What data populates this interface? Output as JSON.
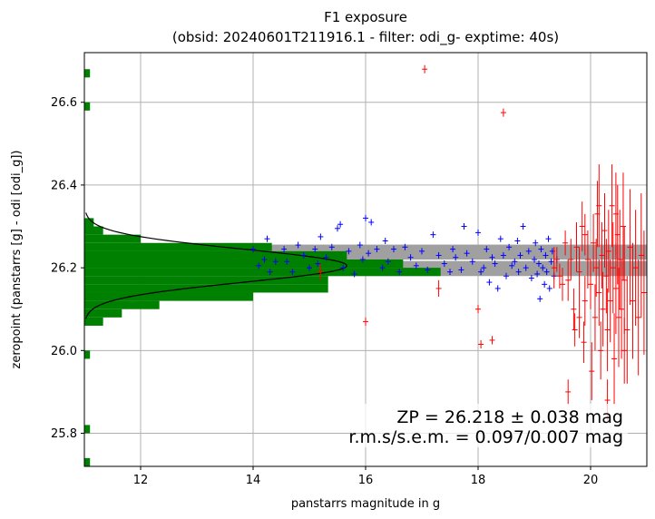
{
  "chart_data": {
    "type": "scatter",
    "title": "F1 exposure",
    "subtitle": "(obsid: 20240601T211916.1 - filter: odi_g- exptime: 40s)",
    "xlabel": "panstarrs magnitude in g",
    "ylabel": "zeropoint (panstarrs [g] - odi [odi_g])",
    "xlim": [
      11.0,
      21.0
    ],
    "ylim": [
      25.72,
      26.72
    ],
    "xticks": [
      "12",
      "14",
      "16",
      "18",
      "20"
    ],
    "yticks": [
      "25.8",
      "26.0",
      "26.2",
      "26.4",
      "26.6"
    ],
    "grid": true,
    "annotation": {
      "zp_line": "ZP = 26.218 ± 0.038 mag",
      "rms_line": "r.m.s/s.e.m. = 0.097/0.007 mag"
    },
    "zeropoint": 26.218,
    "zeropoint_error": 0.038,
    "colors": {
      "used": "#0000ff",
      "rejected": "#ff0000",
      "histogram": "#008000",
      "band": "#a0a0a0",
      "zp_line": "#ffffff",
      "fit_curve": "#000000",
      "grid": "#b0b0b0"
    },
    "histogram": {
      "bin_width": 0.02,
      "bins": [
        {
          "y": 25.72,
          "count": 0.3
        },
        {
          "y": 25.8,
          "count": 0.3
        },
        {
          "y": 25.98,
          "count": 0.3
        },
        {
          "y": 26.06,
          "count": 1
        },
        {
          "y": 26.08,
          "count": 2
        },
        {
          "y": 26.1,
          "count": 4
        },
        {
          "y": 26.12,
          "count": 9
        },
        {
          "y": 26.14,
          "count": 13
        },
        {
          "y": 26.16,
          "count": 13
        },
        {
          "y": 26.18,
          "count": 19
        },
        {
          "y": 26.2,
          "count": 17
        },
        {
          "y": 26.22,
          "count": 14
        },
        {
          "y": 26.24,
          "count": 10
        },
        {
          "y": 26.26,
          "count": 3
        },
        {
          "y": 26.28,
          "count": 1
        },
        {
          "y": 26.3,
          "count": 0.5
        },
        {
          "y": 26.58,
          "count": 0.3
        },
        {
          "y": 26.66,
          "count": 0.3
        }
      ],
      "count_max": 30,
      "gaussian": {
        "mean": 26.205,
        "sigma": 0.04,
        "peak": 14
      }
    },
    "series": [
      {
        "name": "",
        "color": "#0000ff",
        "points": [
          [
            14.0,
            26.245
          ],
          [
            14.1,
            26.205
          ],
          [
            14.2,
            26.22
          ],
          [
            14.25,
            26.27
          ],
          [
            14.3,
            26.19
          ],
          [
            14.4,
            26.215
          ],
          [
            14.55,
            26.245
          ],
          [
            14.6,
            26.215
          ],
          [
            14.7,
            26.19
          ],
          [
            14.8,
            26.255
          ],
          [
            14.9,
            26.23
          ],
          [
            15.0,
            26.2
          ],
          [
            15.1,
            26.245
          ],
          [
            15.15,
            26.21
          ],
          [
            15.2,
            26.275
          ],
          [
            15.3,
            26.225
          ],
          [
            15.4,
            26.25
          ],
          [
            15.5,
            26.295
          ],
          [
            15.55,
            26.305
          ],
          [
            15.6,
            26.2
          ],
          [
            15.7,
            26.24
          ],
          [
            15.8,
            26.185
          ],
          [
            15.9,
            26.255
          ],
          [
            15.95,
            26.22
          ],
          [
            16.0,
            26.32
          ],
          [
            16.05,
            26.235
          ],
          [
            16.1,
            26.31
          ],
          [
            16.2,
            26.245
          ],
          [
            16.3,
            26.2
          ],
          [
            16.35,
            26.265
          ],
          [
            16.4,
            26.215
          ],
          [
            16.5,
            26.245
          ],
          [
            16.6,
            26.19
          ],
          [
            16.7,
            26.25
          ],
          [
            16.8,
            26.225
          ],
          [
            16.9,
            26.205
          ],
          [
            17.0,
            26.24
          ],
          [
            17.1,
            26.195
          ],
          [
            17.2,
            26.28
          ],
          [
            17.3,
            26.23
          ],
          [
            17.4,
            26.21
          ],
          [
            17.5,
            26.19
          ],
          [
            17.55,
            26.245
          ],
          [
            17.6,
            26.225
          ],
          [
            17.7,
            26.195
          ],
          [
            17.75,
            26.3
          ],
          [
            17.8,
            26.235
          ],
          [
            17.9,
            26.215
          ],
          [
            18.0,
            26.285
          ],
          [
            18.05,
            26.19
          ],
          [
            18.1,
            26.2
          ],
          [
            18.15,
            26.245
          ],
          [
            18.2,
            26.165
          ],
          [
            18.25,
            26.225
          ],
          [
            18.3,
            26.21
          ],
          [
            18.35,
            26.15
          ],
          [
            18.4,
            26.27
          ],
          [
            18.45,
            26.23
          ],
          [
            18.5,
            26.18
          ],
          [
            18.55,
            26.25
          ],
          [
            18.6,
            26.205
          ],
          [
            18.65,
            26.215
          ],
          [
            18.7,
            26.265
          ],
          [
            18.72,
            26.19
          ],
          [
            18.75,
            26.23
          ],
          [
            18.8,
            26.3
          ],
          [
            18.85,
            26.2
          ],
          [
            18.9,
            26.24
          ],
          [
            18.95,
            26.175
          ],
          [
            19.0,
            26.22
          ],
          [
            19.02,
            26.26
          ],
          [
            19.05,
            26.185
          ],
          [
            19.08,
            26.21
          ],
          [
            19.1,
            26.125
          ],
          [
            19.12,
            26.245
          ],
          [
            19.15,
            26.2
          ],
          [
            19.18,
            26.16
          ],
          [
            19.2,
            26.23
          ],
          [
            19.22,
            26.19
          ],
          [
            19.25,
            26.27
          ],
          [
            19.27,
            26.15
          ],
          [
            19.3,
            26.215
          ],
          [
            19.32,
            26.24
          ],
          [
            19.35,
            26.18
          ],
          [
            19.4,
            26.22
          ]
        ]
      },
      {
        "name": "",
        "color": "#ff0000",
        "points": [
          [
            17.05,
            26.68,
            0.01
          ],
          [
            18.45,
            26.575,
            0.01
          ],
          [
            16.0,
            26.07,
            0.01
          ],
          [
            18.0,
            26.1,
            0.01
          ],
          [
            18.05,
            26.015,
            0.01
          ],
          [
            18.25,
            26.025,
            0.01
          ],
          [
            15.2,
            26.19,
            0.02
          ],
          [
            17.3,
            26.15,
            0.02
          ],
          [
            19.4,
            26.22,
            0.03
          ],
          [
            19.45,
            26.18,
            0.03
          ],
          [
            19.5,
            26.16,
            0.04
          ],
          [
            19.55,
            26.26,
            0.03
          ],
          [
            19.6,
            26.17,
            0.05
          ],
          [
            19.65,
            26.22,
            0.05
          ],
          [
            19.7,
            26.1,
            0.05
          ],
          [
            19.72,
            26.05,
            0.04
          ],
          [
            19.75,
            26.25,
            0.06
          ],
          [
            19.8,
            26.19,
            0.06
          ],
          [
            19.85,
            26.3,
            0.06
          ],
          [
            19.88,
            26.02,
            0.05
          ],
          [
            19.9,
            26.12,
            0.06
          ],
          [
            19.95,
            26.22,
            0.07
          ],
          [
            20.0,
            26.16,
            0.06
          ],
          [
            20.02,
            25.95,
            0.07
          ],
          [
            20.05,
            26.26,
            0.07
          ],
          [
            20.08,
            26.08,
            0.08
          ],
          [
            20.1,
            26.2,
            0.07
          ],
          [
            20.12,
            26.33,
            0.08
          ],
          [
            20.15,
            26.14,
            0.08
          ],
          [
            20.18,
            26.0,
            0.07
          ],
          [
            20.2,
            26.23,
            0.08
          ],
          [
            20.22,
            26.1,
            0.09
          ],
          [
            20.25,
            26.29,
            0.09
          ],
          [
            20.28,
            26.18,
            0.09
          ],
          [
            20.3,
            26.05,
            0.1
          ],
          [
            20.32,
            26.24,
            0.1
          ],
          [
            20.35,
            26.12,
            0.1
          ],
          [
            20.38,
            26.35,
            0.1
          ],
          [
            20.4,
            26.2,
            0.11
          ],
          [
            20.42,
            25.98,
            0.11
          ],
          [
            20.45,
            26.15,
            0.11
          ],
          [
            20.48,
            26.28,
            0.12
          ],
          [
            20.5,
            26.08,
            0.12
          ],
          [
            20.52,
            26.22,
            0.12
          ],
          [
            20.55,
            26.1,
            0.12
          ],
          [
            20.58,
            26.3,
            0.13
          ],
          [
            20.6,
            26.17,
            0.13
          ],
          [
            20.65,
            26.05,
            0.13
          ],
          [
            20.7,
            26.25,
            0.14
          ],
          [
            20.75,
            26.12,
            0.14
          ],
          [
            20.8,
            26.2,
            0.14
          ],
          [
            20.85,
            26.08,
            0.14
          ],
          [
            20.9,
            26.23,
            0.15
          ],
          [
            20.95,
            26.14,
            0.15
          ],
          [
            19.35,
            26.2,
            0.05
          ],
          [
            19.6,
            25.9,
            0.03
          ],
          [
            20.3,
            25.88,
            0.05
          ],
          [
            19.9,
            26.28,
            0.05
          ],
          [
            20.6,
            26.0,
            0.08
          ],
          [
            20.15,
            26.35,
            0.1
          ],
          [
            19.8,
            26.08,
            0.05
          ],
          [
            20.45,
            26.33,
            0.1
          ]
        ]
      }
    ]
  }
}
